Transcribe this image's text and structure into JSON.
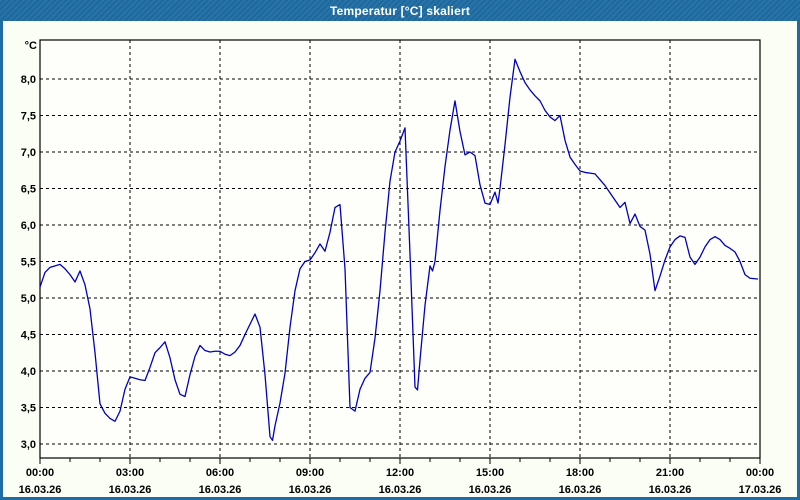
{
  "window": {
    "title": "Temperatur [°C] skaliert"
  },
  "colors": {
    "titlebar": "#1e6ca3",
    "window_border": "#1e6ca3",
    "chart_background": "#fbfef5",
    "plot_background": "#fefffa",
    "grid": "#000000",
    "axis_text": "#000000",
    "line": "#0000c0",
    "title_text": "#ffffff"
  },
  "chart_data": {
    "type": "line",
    "title": "Temperatur [°C] skaliert",
    "ylabel": "°C",
    "xlabel": "",
    "grid": "on",
    "legend": "none",
    "ylim": [
      2.808,
      8.534
    ],
    "y_ticks": {
      "values": [
        8.0,
        7.5,
        7.0,
        6.5,
        6.0,
        5.5,
        5.0,
        4.5,
        4.0,
        3.5,
        3.0
      ],
      "labels": [
        "8,0",
        "7,5",
        "7,0",
        "6,5",
        "6,0",
        "5,5",
        "5,0",
        "4,5",
        "4,0",
        "3,5",
        "3,0"
      ]
    },
    "x_ticks": {
      "major_interval_hours": 3,
      "minor_interval_hours": 1,
      "labels": [
        {
          "time": "00:00",
          "date": "16.03.26",
          "hour": 0
        },
        {
          "time": "03:00",
          "date": "16.03.26",
          "hour": 3
        },
        {
          "time": "06:00",
          "date": "16.03.26",
          "hour": 6
        },
        {
          "time": "09:00",
          "date": "16.03.26",
          "hour": 9
        },
        {
          "time": "12:00",
          "date": "16.03.26",
          "hour": 12
        },
        {
          "time": "15:00",
          "date": "16.03.26",
          "hour": 15
        },
        {
          "time": "18:00",
          "date": "16.03.26",
          "hour": 18
        },
        {
          "time": "21:00",
          "date": "16.03.26",
          "hour": 21
        },
        {
          "time": "00:00",
          "date": "17.03.26",
          "hour": 24
        }
      ]
    },
    "series": [
      {
        "name": "Temperatur",
        "color": "#0000c0",
        "points_format": [
          "minutes_since_00:00",
          "temperature_celsius"
        ],
        "points": [
          [
            0,
            5.15
          ],
          [
            10,
            5.35
          ],
          [
            20,
            5.42
          ],
          [
            30,
            5.44
          ],
          [
            40,
            5.46
          ],
          [
            50,
            5.4
          ],
          [
            60,
            5.32
          ],
          [
            70,
            5.22
          ],
          [
            80,
            5.37
          ],
          [
            90,
            5.18
          ],
          [
            100,
            4.85
          ],
          [
            110,
            4.25
          ],
          [
            120,
            3.55
          ],
          [
            130,
            3.42
          ],
          [
            140,
            3.35
          ],
          [
            150,
            3.31
          ],
          [
            160,
            3.45
          ],
          [
            170,
            3.75
          ],
          [
            180,
            3.92
          ],
          [
            190,
            3.9
          ],
          [
            200,
            3.88
          ],
          [
            210,
            3.87
          ],
          [
            220,
            4.05
          ],
          [
            230,
            4.25
          ],
          [
            240,
            4.32
          ],
          [
            250,
            4.4
          ],
          [
            260,
            4.18
          ],
          [
            270,
            3.88
          ],
          [
            280,
            3.68
          ],
          [
            290,
            3.65
          ],
          [
            300,
            3.95
          ],
          [
            310,
            4.2
          ],
          [
            320,
            4.35
          ],
          [
            330,
            4.28
          ],
          [
            340,
            4.26
          ],
          [
            350,
            4.27
          ],
          [
            360,
            4.27
          ],
          [
            370,
            4.23
          ],
          [
            380,
            4.21
          ],
          [
            390,
            4.26
          ],
          [
            400,
            4.35
          ],
          [
            410,
            4.5
          ],
          [
            420,
            4.64
          ],
          [
            430,
            4.78
          ],
          [
            440,
            4.6
          ],
          [
            450,
            3.95
          ],
          [
            460,
            3.1
          ],
          [
            465,
            3.05
          ],
          [
            470,
            3.25
          ],
          [
            480,
            3.56
          ],
          [
            490,
            3.97
          ],
          [
            500,
            4.6
          ],
          [
            510,
            5.1
          ],
          [
            520,
            5.4
          ],
          [
            530,
            5.5
          ],
          [
            540,
            5.52
          ],
          [
            550,
            5.62
          ],
          [
            560,
            5.74
          ],
          [
            570,
            5.64
          ],
          [
            580,
            5.9
          ],
          [
            590,
            6.24
          ],
          [
            600,
            6.28
          ],
          [
            610,
            5.4
          ],
          [
            620,
            3.5
          ],
          [
            630,
            3.45
          ],
          [
            640,
            3.75
          ],
          [
            650,
            3.9
          ],
          [
            660,
            3.98
          ],
          [
            670,
            4.45
          ],
          [
            680,
            5.1
          ],
          [
            690,
            5.9
          ],
          [
            700,
            6.6
          ],
          [
            710,
            7.0
          ],
          [
            720,
            7.15
          ],
          [
            730,
            7.33
          ],
          [
            740,
            5.6
          ],
          [
            750,
            3.78
          ],
          [
            755,
            3.74
          ],
          [
            760,
            4.15
          ],
          [
            770,
            4.9
          ],
          [
            780,
            5.44
          ],
          [
            785,
            5.37
          ],
          [
            790,
            5.5
          ],
          [
            800,
            6.2
          ],
          [
            810,
            6.8
          ],
          [
            820,
            7.3
          ],
          [
            830,
            7.7
          ],
          [
            840,
            7.28
          ],
          [
            850,
            6.96
          ],
          [
            860,
            7.0
          ],
          [
            870,
            6.95
          ],
          [
            880,
            6.55
          ],
          [
            890,
            6.3
          ],
          [
            900,
            6.28
          ],
          [
            910,
            6.45
          ],
          [
            916,
            6.3
          ],
          [
            920,
            6.5
          ],
          [
            930,
            7.1
          ],
          [
            940,
            7.75
          ],
          [
            950,
            8.27
          ],
          [
            960,
            8.1
          ],
          [
            970,
            7.95
          ],
          [
            980,
            7.85
          ],
          [
            990,
            7.77
          ],
          [
            1000,
            7.7
          ],
          [
            1010,
            7.57
          ],
          [
            1020,
            7.48
          ],
          [
            1030,
            7.43
          ],
          [
            1040,
            7.5
          ],
          [
            1050,
            7.16
          ],
          [
            1060,
            6.93
          ],
          [
            1070,
            6.83
          ],
          [
            1080,
            6.74
          ],
          [
            1090,
            6.72
          ],
          [
            1100,
            6.71
          ],
          [
            1110,
            6.7
          ],
          [
            1120,
            6.62
          ],
          [
            1130,
            6.54
          ],
          [
            1140,
            6.44
          ],
          [
            1150,
            6.34
          ],
          [
            1160,
            6.24
          ],
          [
            1170,
            6.31
          ],
          [
            1180,
            6.02
          ],
          [
            1190,
            6.15
          ],
          [
            1200,
            5.98
          ],
          [
            1210,
            5.93
          ],
          [
            1220,
            5.6
          ],
          [
            1230,
            5.1
          ],
          [
            1240,
            5.3
          ],
          [
            1250,
            5.52
          ],
          [
            1260,
            5.7
          ],
          [
            1270,
            5.8
          ],
          [
            1280,
            5.85
          ],
          [
            1290,
            5.83
          ],
          [
            1300,
            5.56
          ],
          [
            1310,
            5.46
          ],
          [
            1320,
            5.56
          ],
          [
            1330,
            5.7
          ],
          [
            1340,
            5.8
          ],
          [
            1350,
            5.84
          ],
          [
            1360,
            5.8
          ],
          [
            1370,
            5.72
          ],
          [
            1380,
            5.68
          ],
          [
            1390,
            5.63
          ],
          [
            1400,
            5.5
          ],
          [
            1410,
            5.32
          ],
          [
            1420,
            5.27
          ],
          [
            1435,
            5.26
          ]
        ]
      }
    ]
  }
}
